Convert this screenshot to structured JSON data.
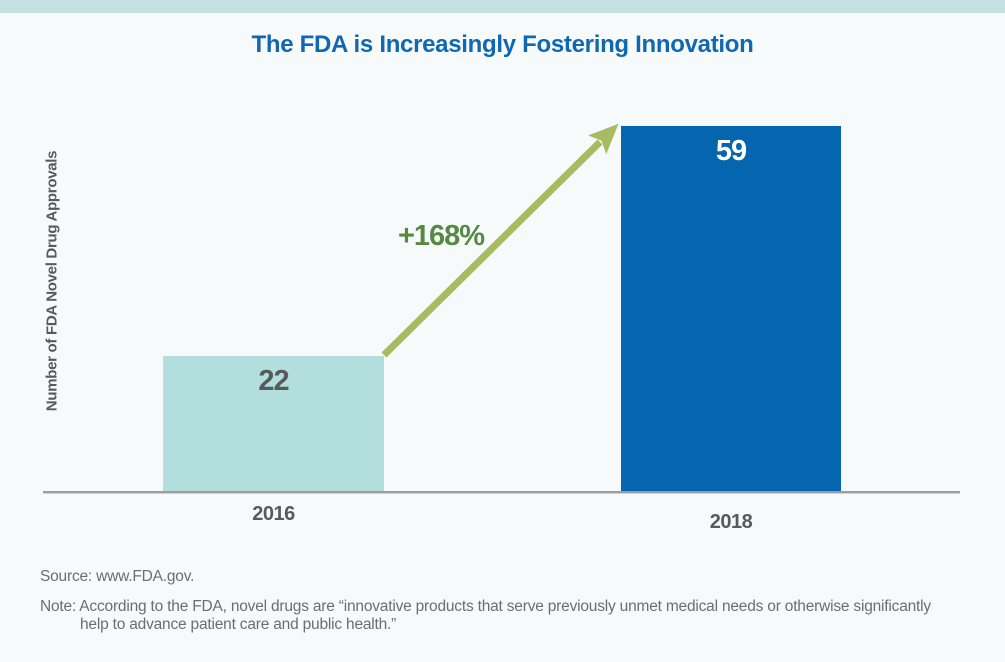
{
  "chart_data": {
    "type": "bar",
    "title": "The FDA is Increasingly Fostering Innovation",
    "ylabel": "Number of FDA Novel Drug Approvals",
    "xlabel": "",
    "categories": [
      "2016",
      "2018"
    ],
    "values": [
      22,
      59
    ],
    "growth_annotation": "+168%",
    "ylim": [
      0,
      65
    ],
    "grid": false,
    "legend": false,
    "bar_colors": [
      "#b2dedd",
      "#0565ae"
    ],
    "value_label_colors": [
      "#58595b",
      "#ffffff"
    ]
  },
  "footer": {
    "source": "Source: www.FDA.gov.",
    "note_line1": "Note: According to the FDA, novel drugs are “innovative products that serve previously unmet medical needs or otherwise significantly",
    "note_line2": "help to advance patient care and public health.”"
  },
  "colors": {
    "background": "#f7fafb",
    "top_strip": "#c5e0e0",
    "title_blue": "#1067b2",
    "bar_teal": "#b2dedd",
    "bar_blue": "#0565ae",
    "arrow_olive": "#a7bb61",
    "growth_green": "#568a42",
    "axis_gray": "#9b9da0",
    "label_gray": "#58595b",
    "note_gray": "#6b6d70"
  }
}
